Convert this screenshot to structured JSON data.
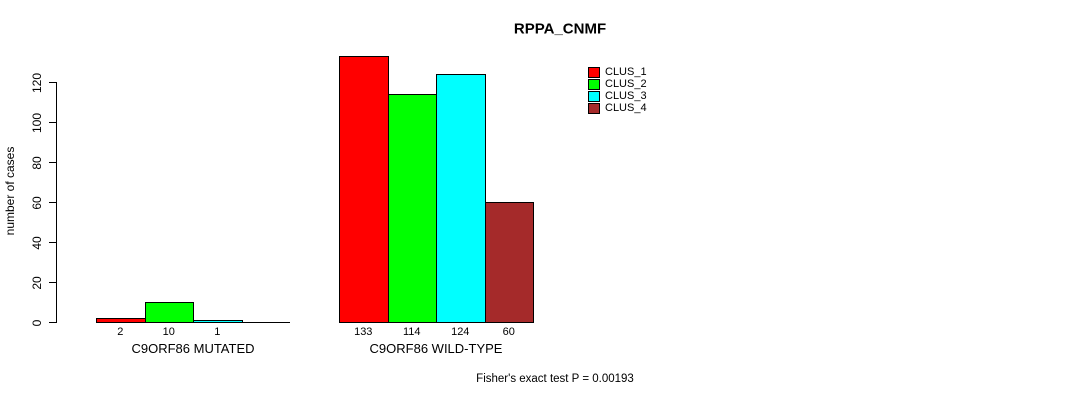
{
  "chart_data": {
    "type": "bar",
    "title": "RPPA_CNMF",
    "xlabel": "",
    "ylabel": "number of cases",
    "yticks": [
      0,
      20,
      40,
      60,
      80,
      100,
      120
    ],
    "ylim": [
      0,
      120
    ],
    "grid": false,
    "legend_position": "top-right",
    "bar_border_color": "#000000",
    "series": [
      {
        "name": "CLUS_1",
        "color": "#FF0000"
      },
      {
        "name": "CLUS_2",
        "color": "#00FF00"
      },
      {
        "name": "CLUS_3",
        "color": "#00FFFF"
      },
      {
        "name": "CLUS_4",
        "color": "#A52A2A"
      }
    ],
    "groups": [
      {
        "label": "C9ORF86 MUTATED",
        "values": [
          2,
          10,
          1,
          0
        ],
        "value_labels": [
          "2",
          "10",
          "1",
          ""
        ]
      },
      {
        "label": "C9ORF86 WILD-TYPE",
        "values": [
          133,
          114,
          124,
          60
        ],
        "value_labels": [
          "133",
          "114",
          "124",
          "60"
        ]
      }
    ],
    "annotation": "Fisher's exact test P = 0.00193"
  }
}
